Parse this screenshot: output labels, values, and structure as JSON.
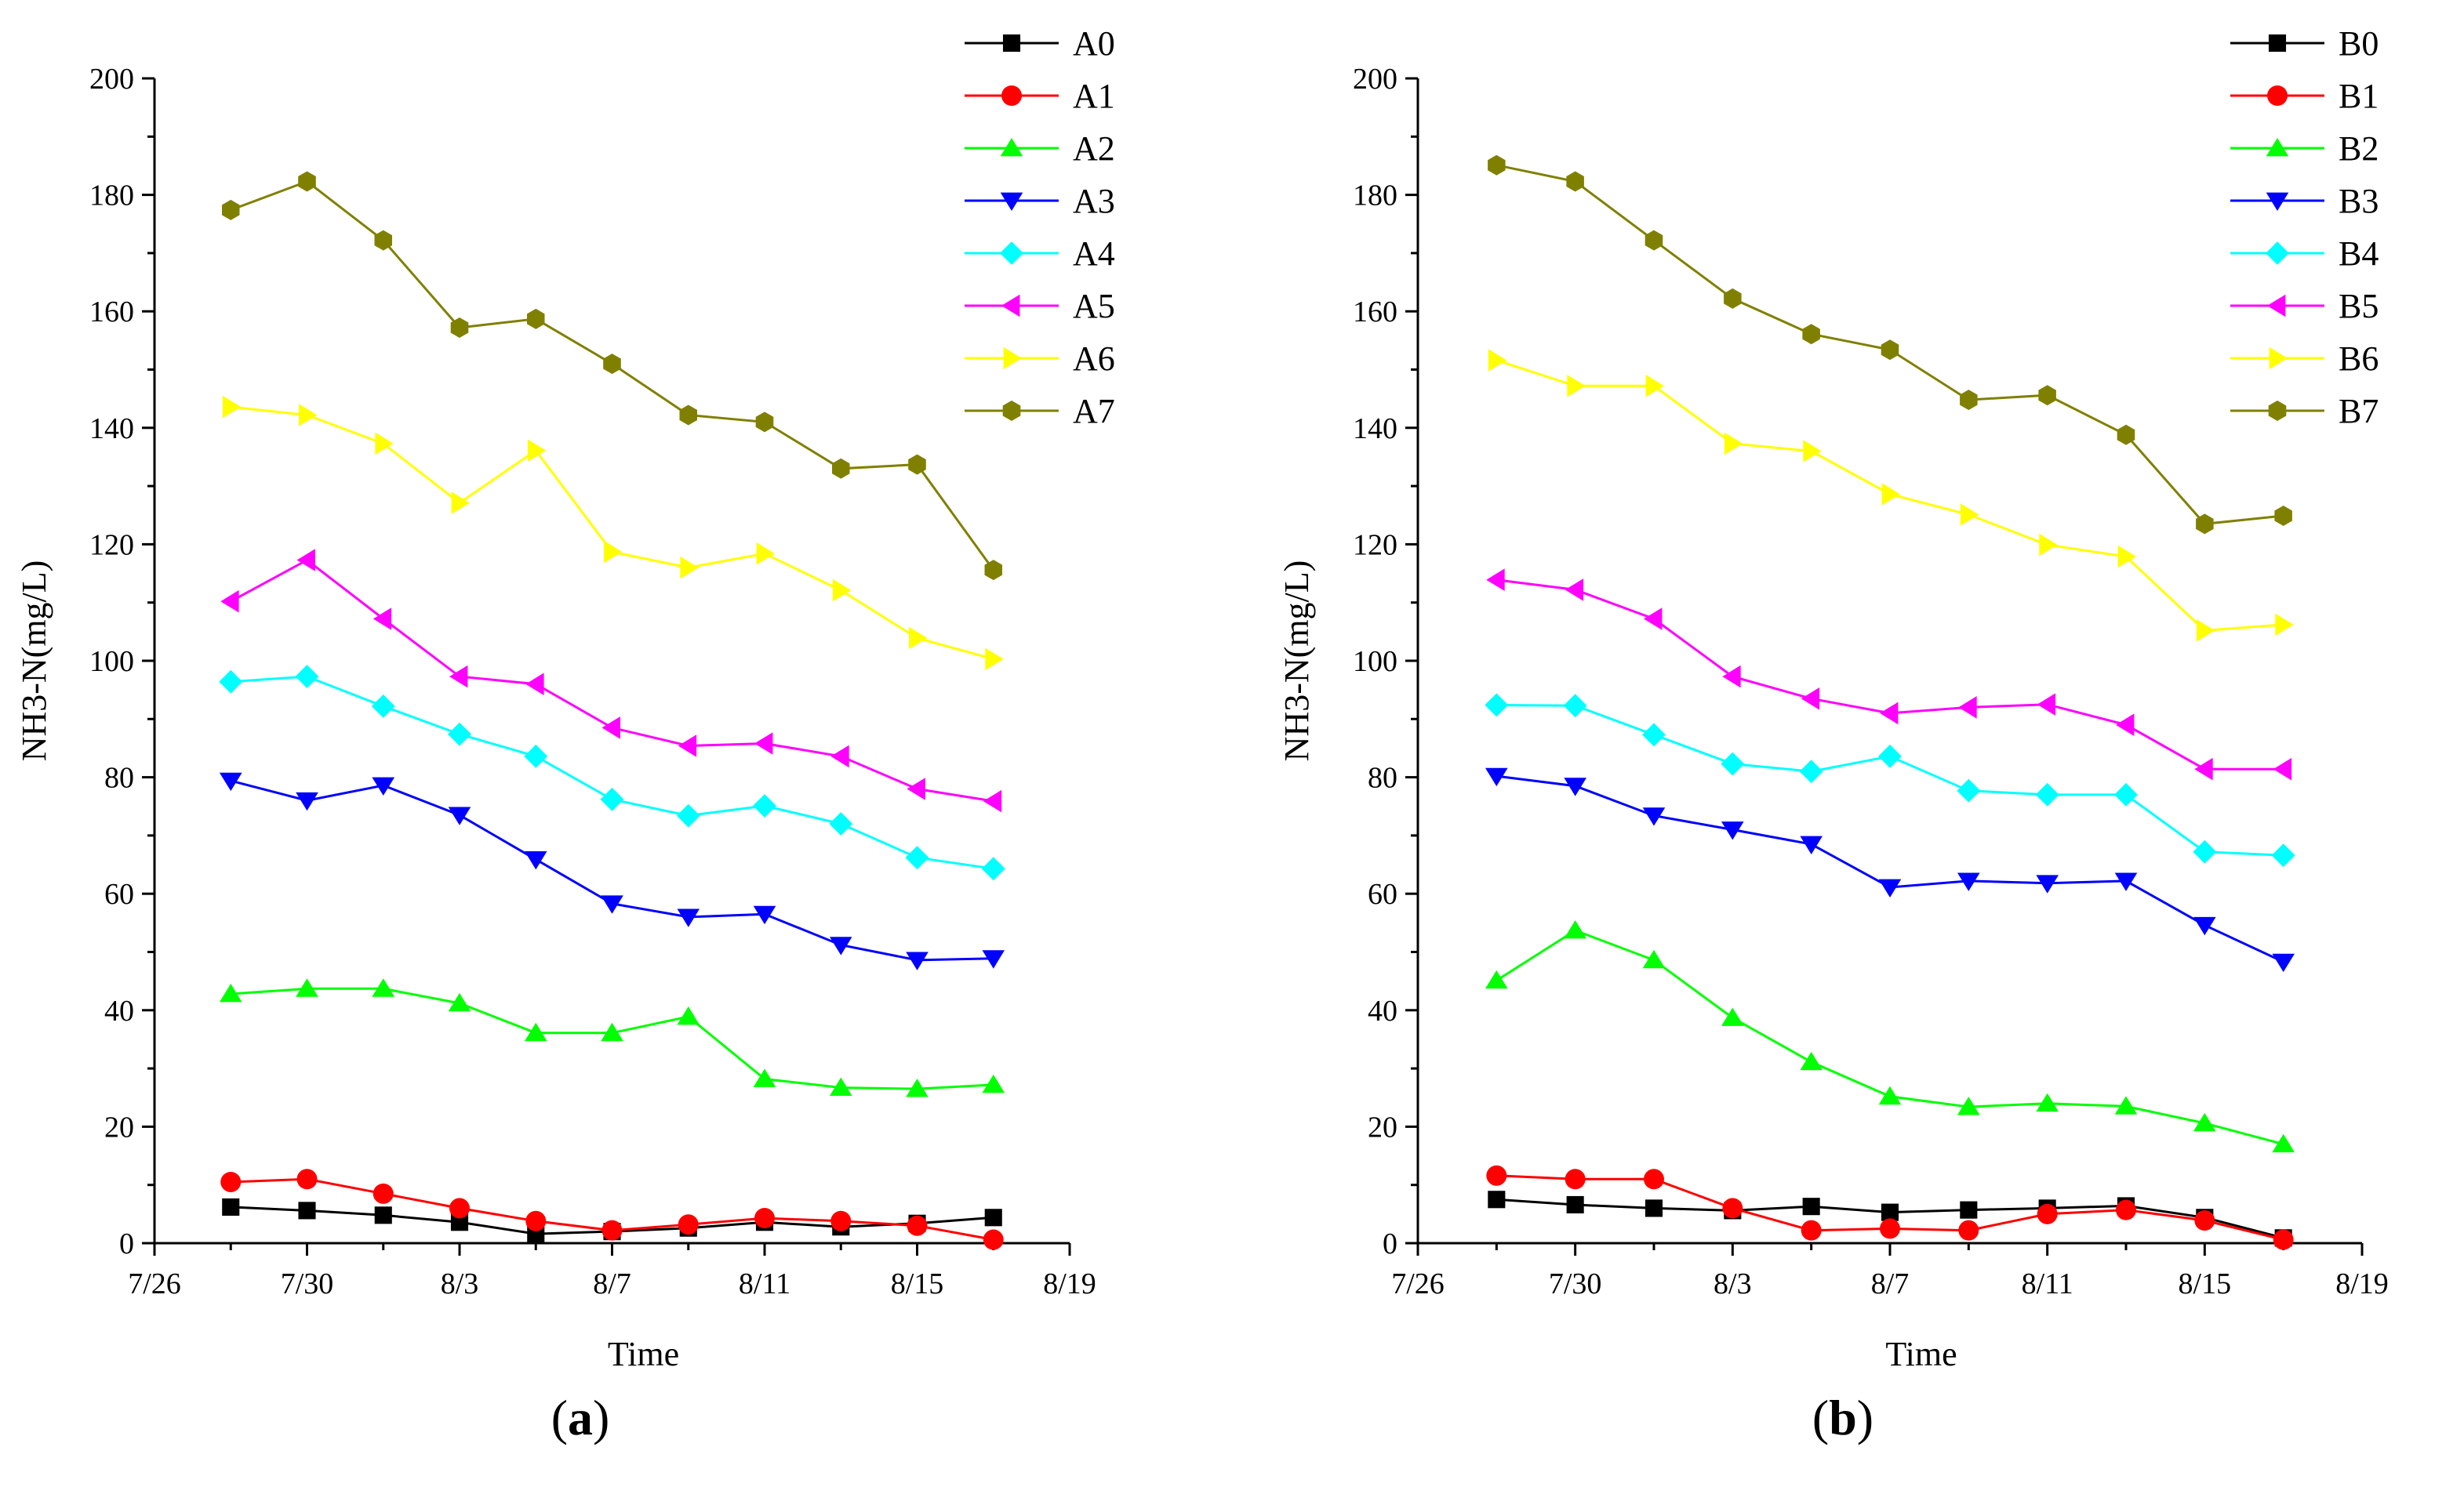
{
  "colors": {
    "axis": "#000000",
    "series": [
      "#000000",
      "#ff0000",
      "#00ff00",
      "#0000ff",
      "#00ffff",
      "#ff00ff",
      "#ffff00",
      "#808000"
    ],
    "markers": [
      "square",
      "circle",
      "triangle-up",
      "triangle-down",
      "diamond",
      "triangle-left",
      "triangle-right",
      "hexagon"
    ]
  },
  "chart_data": [
    {
      "type": "line",
      "panel_label": "(a)",
      "title": "",
      "xlabel": "Time",
      "ylabel": "NH3-N(mg/L)",
      "x_ticks": [
        "7/26",
        "7/30",
        "8/3",
        "8/7",
        "8/11",
        "8/15",
        "8/19"
      ],
      "y_ticks": [
        "0",
        "20",
        "40",
        "60",
        "80",
        "100",
        "120",
        "140",
        "160",
        "180",
        "200"
      ],
      "xlim": [
        0,
        24
      ],
      "ylim": [
        0,
        200
      ],
      "legend_position": "top-right",
      "x": [
        2,
        4,
        6,
        8,
        10,
        12,
        14,
        16,
        18,
        20,
        22
      ],
      "series": [
        {
          "name": "A0",
          "values": [
            6.2,
            5.6,
            4.8,
            3.6,
            1.6,
            2.0,
            2.6,
            3.6,
            2.8,
            3.4,
            4.4
          ]
        },
        {
          "name": "A1",
          "values": [
            10.5,
            11.0,
            8.5,
            6.0,
            3.8,
            2.2,
            3.2,
            4.3,
            3.8,
            3.0,
            0.6
          ]
        },
        {
          "name": "A2",
          "values": [
            42.8,
            43.7,
            43.7,
            41.2,
            36.1,
            36.1,
            38.9,
            28.2,
            26.7,
            26.5,
            27.2
          ]
        },
        {
          "name": "A3",
          "values": [
            79.4,
            76.0,
            78.6,
            73.5,
            65.9,
            58.3,
            56.0,
            56.5,
            51.2,
            48.6,
            48.9
          ]
        },
        {
          "name": "A4",
          "values": [
            96.4,
            97.3,
            92.2,
            87.4,
            83.6,
            76.2,
            73.4,
            75.1,
            72.0,
            66.2,
            64.3
          ]
        },
        {
          "name": "A5",
          "values": [
            110.2,
            117.3,
            107.2,
            97.3,
            96.0,
            88.5,
            85.4,
            85.8,
            83.6,
            78.0,
            75.9
          ]
        },
        {
          "name": "A6",
          "values": [
            143.6,
            142.2,
            137.3,
            127.1,
            136.1,
            118.7,
            116.0,
            118.4,
            112.1,
            103.9,
            100.3
          ]
        },
        {
          "name": "A7",
          "values": [
            177.4,
            182.3,
            172.2,
            157.2,
            158.7,
            151.0,
            142.2,
            141.0,
            133.0,
            133.7,
            115.6
          ]
        }
      ]
    },
    {
      "type": "line",
      "panel_label": "(b)",
      "title": "",
      "xlabel": "Time",
      "ylabel": "NH3-N(mg/L)",
      "x_ticks": [
        "7/26",
        "7/30",
        "8/3",
        "8/7",
        "8/11",
        "8/15",
        "8/19"
      ],
      "y_ticks": [
        "0",
        "20",
        "40",
        "60",
        "80",
        "100",
        "120",
        "140",
        "160",
        "180",
        "200"
      ],
      "xlim": [
        0,
        24
      ],
      "ylim": [
        0,
        200
      ],
      "legend_position": "top-right",
      "x": [
        2,
        4,
        6,
        8,
        10,
        12,
        14,
        16,
        18,
        20,
        22
      ],
      "series": [
        {
          "name": "B0",
          "values": [
            7.5,
            6.6,
            6.0,
            5.6,
            6.3,
            5.3,
            5.7,
            6.0,
            6.4,
            4.4,
            0.9
          ]
        },
        {
          "name": "B1",
          "values": [
            11.6,
            11.0,
            11.0,
            6.0,
            2.2,
            2.5,
            2.2,
            5.0,
            5.7,
            3.9,
            0.6
          ]
        },
        {
          "name": "B2",
          "values": [
            45.1,
            53.7,
            48.6,
            38.7,
            31.1,
            25.2,
            23.4,
            24.0,
            23.5,
            20.6,
            17.0
          ]
        },
        {
          "name": "B3",
          "values": [
            80.2,
            78.5,
            73.4,
            71.0,
            68.5,
            61.1,
            62.2,
            61.8,
            62.2,
            54.6,
            48.3
          ]
        },
        {
          "name": "B4",
          "values": [
            92.4,
            92.3,
            87.3,
            82.3,
            81.0,
            83.6,
            77.7,
            77.0,
            77.0,
            67.2,
            66.6
          ]
        },
        {
          "name": "B5",
          "values": [
            113.9,
            112.2,
            107.2,
            97.3,
            93.5,
            91.0,
            92.0,
            92.5,
            89.0,
            81.4,
            81.4
          ]
        },
        {
          "name": "B6",
          "values": [
            151.6,
            147.2,
            147.2,
            137.3,
            136.0,
            128.6,
            125.1,
            119.9,
            117.9,
            105.2,
            106.2
          ]
        },
        {
          "name": "B7",
          "values": [
            185.1,
            182.3,
            172.2,
            162.2,
            156.1,
            153.4,
            144.8,
            145.6,
            138.8,
            123.5,
            124.9
          ]
        }
      ]
    }
  ]
}
